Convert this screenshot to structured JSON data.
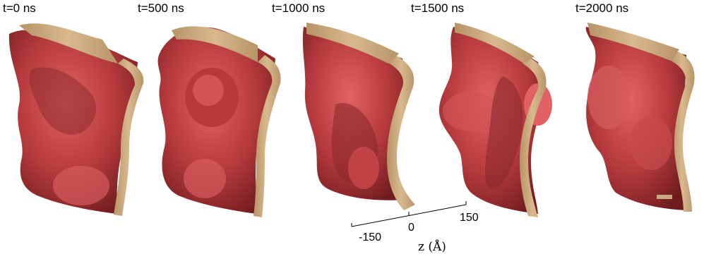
{
  "panels": [
    {
      "time_label": "t=0 ns"
    },
    {
      "time_label": "t=500 ns"
    },
    {
      "time_label": "t=1000 ns"
    },
    {
      "time_label": "t=1500 ns"
    },
    {
      "time_label": "t=2000 ns"
    }
  ],
  "axis": {
    "ticks": [
      "-150",
      "0",
      "150"
    ],
    "title": "z (Å)"
  },
  "colors": {
    "membrane_face": "#c8484a",
    "membrane_shadow": "#7a1f22",
    "cross_section": "#c9a87f"
  }
}
